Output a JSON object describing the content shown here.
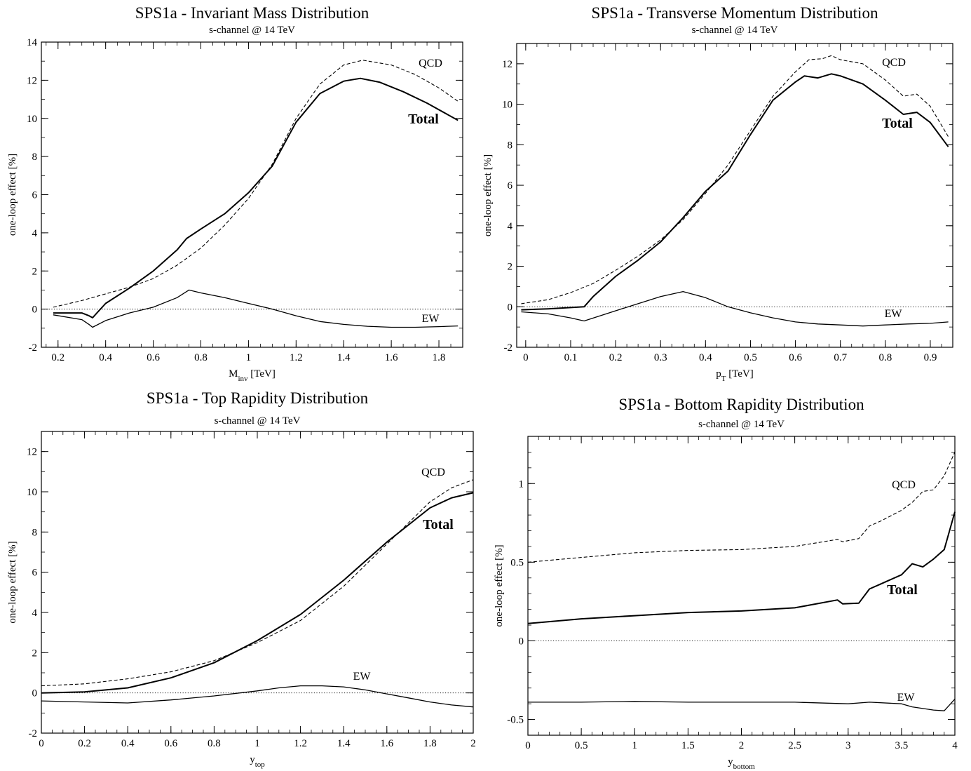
{
  "chart_data": [
    {
      "type": "line",
      "title": "SPS1a - Invariant Mass Distribution",
      "subtitle": "s-channel @ 14 TeV",
      "xlabel": {
        "main": "M",
        "sub": "inv",
        "unit": " [TeV]"
      },
      "ylabel": "one-loop effect [%]",
      "xlim": [
        0.13,
        1.9
      ],
      "ylim": [
        -2,
        14
      ],
      "xticks": [
        0.2,
        0.4,
        0.6,
        0.8,
        1,
        1.2,
        1.4,
        1.6,
        1.8
      ],
      "yticks": [
        -2,
        0,
        2,
        4,
        6,
        8,
        10,
        12,
        14
      ],
      "xminor": 0.05,
      "yminor": 1,
      "zero_line": true,
      "series": [
        {
          "name": "QCD",
          "style": "dashed",
          "x": [
            0.18,
            0.3,
            0.4,
            0.5,
            0.6,
            0.7,
            0.8,
            0.9,
            1.0,
            1.1,
            1.2,
            1.3,
            1.4,
            1.48,
            1.6,
            1.7,
            1.8,
            1.88
          ],
          "y": [
            0.1,
            0.45,
            0.8,
            1.15,
            1.6,
            2.3,
            3.2,
            4.4,
            5.8,
            7.6,
            10.0,
            11.8,
            12.8,
            13.05,
            12.8,
            12.3,
            11.6,
            10.9
          ]
        },
        {
          "name": "Total",
          "style": "solid-bold",
          "x": [
            0.18,
            0.3,
            0.33,
            0.345,
            0.4,
            0.5,
            0.6,
            0.7,
            0.74,
            0.8,
            0.9,
            1.0,
            1.1,
            1.2,
            1.3,
            1.4,
            1.47,
            1.55,
            1.65,
            1.75,
            1.88
          ],
          "y": [
            -0.2,
            -0.2,
            -0.35,
            -0.45,
            0.3,
            1.1,
            2.0,
            3.1,
            3.7,
            4.2,
            5.0,
            6.1,
            7.5,
            9.8,
            11.3,
            11.95,
            12.1,
            11.9,
            11.4,
            10.8,
            9.9
          ]
        },
        {
          "name": "EW",
          "style": "solid",
          "x": [
            0.18,
            0.3,
            0.33,
            0.345,
            0.4,
            0.5,
            0.6,
            0.7,
            0.75,
            0.8,
            0.9,
            1.0,
            1.1,
            1.2,
            1.3,
            1.4,
            1.5,
            1.6,
            1.7,
            1.8,
            1.88
          ],
          "y": [
            -0.3,
            -0.55,
            -0.8,
            -0.95,
            -0.6,
            -0.2,
            0.1,
            0.6,
            1.0,
            0.85,
            0.6,
            0.3,
            0.0,
            -0.35,
            -0.65,
            -0.8,
            -0.9,
            -0.95,
            -0.95,
            -0.92,
            -0.88
          ]
        }
      ],
      "labels": {
        "qcd": "QCD",
        "total": "Total",
        "ew": "EW"
      }
    },
    {
      "type": "line",
      "title": "SPS1a - Transverse Momentum Distribution",
      "subtitle": "s-channel @ 14 TeV",
      "xlabel": {
        "main": "p",
        "sub": "T",
        "unit": " [TeV]"
      },
      "ylabel": "one-loop effect [%]",
      "xlim": [
        -0.02,
        0.95
      ],
      "ylim": [
        -2,
        13
      ],
      "xticks": [
        0,
        0.1,
        0.2,
        0.3,
        0.4,
        0.5,
        0.6,
        0.7,
        0.8,
        0.9
      ],
      "yticks": [
        -2,
        0,
        2,
        4,
        6,
        8,
        10,
        12
      ],
      "xminor": 0.025,
      "yminor": 1,
      "zero_line": true,
      "series": [
        {
          "name": "QCD",
          "style": "dashed",
          "x": [
            -0.01,
            0.05,
            0.1,
            0.15,
            0.2,
            0.25,
            0.3,
            0.35,
            0.4,
            0.45,
            0.5,
            0.55,
            0.6,
            0.63,
            0.66,
            0.68,
            0.7,
            0.75,
            0.8,
            0.84,
            0.87,
            0.9,
            0.94
          ],
          "y": [
            0.15,
            0.35,
            0.7,
            1.15,
            1.8,
            2.5,
            3.3,
            4.3,
            5.6,
            7.0,
            8.7,
            10.4,
            11.6,
            12.2,
            12.25,
            12.4,
            12.2,
            12.0,
            11.2,
            10.4,
            10.5,
            9.9,
            8.4
          ]
        },
        {
          "name": "Total",
          "style": "solid-bold",
          "x": [
            -0.01,
            0.05,
            0.13,
            0.15,
            0.2,
            0.25,
            0.3,
            0.35,
            0.4,
            0.45,
            0.5,
            0.55,
            0.6,
            0.62,
            0.65,
            0.68,
            0.7,
            0.75,
            0.8,
            0.84,
            0.87,
            0.9,
            0.94
          ],
          "y": [
            -0.15,
            -0.1,
            0.0,
            0.5,
            1.5,
            2.3,
            3.2,
            4.4,
            5.7,
            6.7,
            8.5,
            10.2,
            11.1,
            11.4,
            11.3,
            11.5,
            11.4,
            11.0,
            10.2,
            9.5,
            9.6,
            9.1,
            7.9
          ]
        },
        {
          "name": "EW",
          "style": "solid",
          "x": [
            -0.01,
            0.05,
            0.1,
            0.13,
            0.2,
            0.25,
            0.3,
            0.35,
            0.4,
            0.45,
            0.5,
            0.55,
            0.6,
            0.65,
            0.7,
            0.75,
            0.8,
            0.85,
            0.9,
            0.94
          ],
          "y": [
            -0.25,
            -0.35,
            -0.55,
            -0.7,
            -0.2,
            0.15,
            0.5,
            0.75,
            0.45,
            0.0,
            -0.3,
            -0.55,
            -0.75,
            -0.85,
            -0.9,
            -0.95,
            -0.9,
            -0.85,
            -0.82,
            -0.75
          ]
        }
      ],
      "labels": {
        "qcd": "QCD",
        "total": "Total",
        "ew": "EW"
      }
    },
    {
      "type": "line",
      "title": "SPS1a - Top Rapidity Distribution",
      "subtitle": "s-channel @ 14 TeV",
      "xlabel": {
        "main": "y",
        "sub": "top",
        "unit": ""
      },
      "ylabel": "one-loop effect [%]",
      "xlim": [
        0,
        2
      ],
      "ylim": [
        -2,
        13
      ],
      "xticks": [
        0,
        0.2,
        0.4,
        0.6,
        0.8,
        1,
        1.2,
        1.4,
        1.6,
        1.8,
        2
      ],
      "yticks": [
        -2,
        0,
        2,
        4,
        6,
        8,
        10,
        12
      ],
      "xminor": 0.05,
      "yminor": 1,
      "zero_line": true,
      "series": [
        {
          "name": "QCD",
          "style": "dashed",
          "x": [
            0,
            0.2,
            0.4,
            0.6,
            0.8,
            1.0,
            1.2,
            1.4,
            1.6,
            1.8,
            1.9,
            2.0
          ],
          "y": [
            0.35,
            0.45,
            0.7,
            1.05,
            1.6,
            2.5,
            3.6,
            5.3,
            7.4,
            9.5,
            10.2,
            10.6
          ]
        },
        {
          "name": "Total",
          "style": "solid-bold",
          "x": [
            0,
            0.2,
            0.4,
            0.6,
            0.8,
            1.0,
            1.2,
            1.4,
            1.6,
            1.8,
            1.9,
            2.0
          ],
          "y": [
            0.0,
            0.05,
            0.25,
            0.75,
            1.5,
            2.6,
            3.9,
            5.6,
            7.5,
            9.2,
            9.7,
            9.95
          ]
        },
        {
          "name": "EW",
          "style": "solid",
          "x": [
            0,
            0.2,
            0.4,
            0.6,
            0.8,
            1.0,
            1.1,
            1.2,
            1.3,
            1.4,
            1.5,
            1.6,
            1.7,
            1.8,
            1.9,
            2.0
          ],
          "y": [
            -0.4,
            -0.45,
            -0.5,
            -0.35,
            -0.15,
            0.1,
            0.25,
            0.35,
            0.35,
            0.3,
            0.15,
            -0.05,
            -0.25,
            -0.45,
            -0.6,
            -0.7
          ]
        }
      ],
      "labels": {
        "qcd": "QCD",
        "total": "Total",
        "ew": "EW"
      }
    },
    {
      "type": "line",
      "title": "SPS1a - Bottom Rapidity Distribution",
      "subtitle": "s-channel @ 14 TeV",
      "xlabel": {
        "main": "y",
        "sub": "bottom",
        "unit": ""
      },
      "ylabel": "one-loop effect [%]",
      "xlim": [
        0,
        4
      ],
      "ylim": [
        -0.6,
        1.3
      ],
      "xticks": [
        0,
        0.5,
        1,
        1.5,
        2,
        2.5,
        3,
        3.5,
        4
      ],
      "yticks": [
        -0.5,
        0,
        0.5,
        1
      ],
      "yticklabels": [
        "-0.5",
        "0",
        "0.5",
        "1"
      ],
      "xminor": 0.1,
      "yminor": 0.1,
      "zero_line": true,
      "series": [
        {
          "name": "QCD",
          "style": "dashed",
          "x": [
            0,
            0.5,
            1.0,
            1.5,
            2.0,
            2.5,
            2.9,
            2.95,
            3.1,
            3.2,
            3.3,
            3.5,
            3.6,
            3.7,
            3.8,
            3.9,
            4.0
          ],
          "y": [
            0.5,
            0.53,
            0.56,
            0.575,
            0.58,
            0.6,
            0.645,
            0.63,
            0.65,
            0.73,
            0.76,
            0.83,
            0.88,
            0.95,
            0.96,
            1.05,
            1.2
          ]
        },
        {
          "name": "Total",
          "style": "solid-bold",
          "x": [
            0,
            0.5,
            1.0,
            1.5,
            2.0,
            2.5,
            2.9,
            2.95,
            3.1,
            3.2,
            3.3,
            3.5,
            3.6,
            3.7,
            3.8,
            3.9,
            3.95,
            4.0
          ],
          "y": [
            0.11,
            0.14,
            0.16,
            0.18,
            0.19,
            0.21,
            0.26,
            0.235,
            0.24,
            0.33,
            0.36,
            0.42,
            0.49,
            0.47,
            0.52,
            0.58,
            0.7,
            0.82
          ]
        },
        {
          "name": "EW",
          "style": "solid",
          "x": [
            0,
            0.5,
            1.0,
            1.5,
            2.0,
            2.5,
            3.0,
            3.2,
            3.5,
            3.6,
            3.7,
            3.8,
            3.9,
            4.0
          ],
          "y": [
            -0.39,
            -0.39,
            -0.385,
            -0.39,
            -0.39,
            -0.39,
            -0.4,
            -0.39,
            -0.4,
            -0.42,
            -0.43,
            -0.44,
            -0.445,
            -0.37
          ]
        }
      ],
      "labels": {
        "qcd": "QCD",
        "total": "Total",
        "ew": "EW"
      }
    }
  ]
}
